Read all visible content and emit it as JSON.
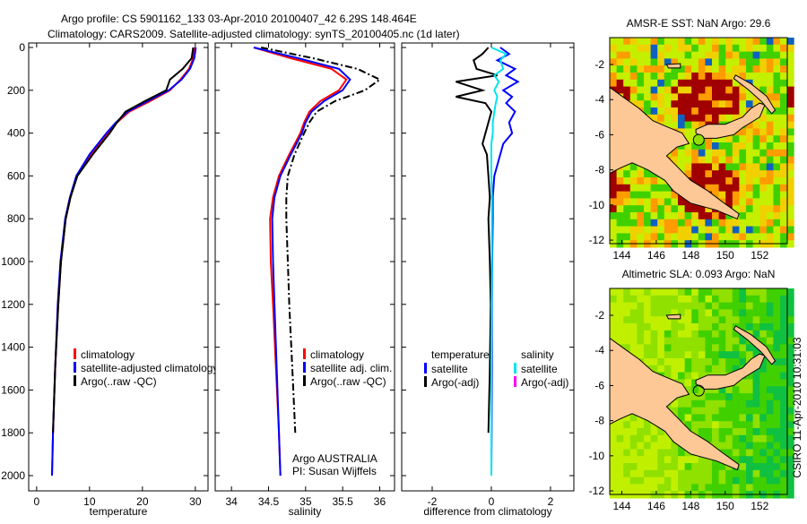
{
  "title_line1": "Argo profile: CS 5901162_133 03-Apr-2010 20100407_42 6.29S 148.464E",
  "title_line2": "Climatology: CARS2009. Satellite-adjusted climatology: synTS_20100405.nc (1d later)",
  "footer_stamp": "CSIRO 11-Apr-2010 10:31:03",
  "colors": {
    "climatology": "#ff0000",
    "satellite": "#0000ff",
    "argo": "#000000",
    "sal_satellite": "#00e5ee",
    "sal_argo": "#ff00ff",
    "land": "#fdc896"
  },
  "chart_data": [
    {
      "type": "line",
      "xlabel": "temperature",
      "ylabel": "",
      "xlim": [
        -1.5,
        32.4
      ],
      "ylim": [
        0,
        2070
      ],
      "y_reversed": true,
      "xticks": [
        "0",
        "10",
        "20",
        "30"
      ],
      "xtick_values": [
        0,
        10,
        20,
        30
      ],
      "yticks": [
        "0",
        "200",
        "400",
        "600",
        "800",
        "1000",
        "1200",
        "1400",
        "1600",
        "1800",
        "2000"
      ],
      "legend": [
        "climatology",
        "satellite-adjusted climatology",
        "Argo(..raw -QC)"
      ],
      "pressure": [
        0,
        50,
        100,
        150,
        200,
        250,
        300,
        350,
        400,
        500,
        600,
        700,
        800,
        1000,
        1200,
        1500,
        1800,
        2000
      ],
      "series": [
        {
          "name": "climatology",
          "values": [
            29.8,
            29.6,
            28.8,
            27.2,
            25.2,
            21.5,
            17.5,
            15.2,
            13.4,
            10.2,
            7.6,
            6.4,
            5.5,
            4.6,
            4.1,
            3.5,
            3.1,
            2.9
          ]
        },
        {
          "name": "satellite-adjusted climatology",
          "values": [
            30.1,
            29.8,
            29.0,
            27.4,
            25.0,
            21.0,
            17.2,
            15.0,
            13.2,
            10.0,
            7.5,
            6.3,
            5.4,
            4.5,
            4.0,
            3.5,
            3.1,
            2.9
          ]
        },
        {
          "name": "Argo(..raw -QC)",
          "values": [
            29.6,
            29.3,
            27.6,
            25.2,
            24.5,
            20.5,
            16.8,
            15.2,
            13.8,
            10.6,
            7.7,
            6.4,
            5.5,
            4.6,
            4.1,
            3.5,
            3.1,
            null
          ]
        }
      ]
    },
    {
      "type": "line",
      "xlabel": "salinity",
      "xlim": [
        33.78,
        36.2
      ],
      "ylim": [
        0,
        2070
      ],
      "y_reversed": true,
      "xticks": [
        "34",
        "34.5",
        "35",
        "35.5",
        "36"
      ],
      "xtick_values": [
        34,
        34.5,
        35,
        35.5,
        36
      ],
      "legend": [
        "climatology",
        "satellite adj. clim.",
        "Argo(..raw -QC)"
      ],
      "annotation": [
        "Argo AUSTRALIA",
        "PI: Susan Wijffels"
      ],
      "pressure": [
        0,
        50,
        100,
        150,
        200,
        250,
        300,
        350,
        400,
        500,
        600,
        700,
        800,
        1000,
        1200,
        1500,
        1800,
        2000
      ],
      "series": [
        {
          "name": "climatology",
          "values": [
            34.3,
            34.8,
            35.35,
            35.55,
            35.45,
            35.2,
            35.05,
            34.98,
            34.93,
            34.78,
            34.64,
            34.56,
            34.52,
            34.53,
            34.56,
            34.6,
            34.64,
            34.66
          ]
        },
        {
          "name": "satellite adj. clim.",
          "values": [
            34.3,
            34.9,
            35.45,
            35.6,
            35.5,
            35.25,
            35.08,
            35.0,
            34.95,
            34.8,
            34.66,
            34.58,
            34.55,
            34.56,
            34.58,
            34.61,
            34.64,
            34.66
          ]
        },
        {
          "name": "Argo(..raw -QC)",
          "values": [
            34.4,
            35.1,
            35.7,
            36.0,
            35.8,
            35.4,
            35.15,
            35.05,
            34.98,
            34.85,
            34.76,
            34.74,
            34.74,
            34.76,
            34.78,
            34.82,
            34.86,
            null
          ]
        }
      ]
    },
    {
      "type": "line",
      "xlabel": "difference from climatology",
      "xlim": [
        -3.03,
        2.79
      ],
      "ylim": [
        0,
        2070
      ],
      "y_reversed": true,
      "xticks": [
        "-2",
        "0",
        "2"
      ],
      "xtick_values": [
        -2,
        0,
        2
      ],
      "legend_temperature": {
        "heading": "temperature",
        "items": [
          "satellite",
          "Argo(-adj)"
        ]
      },
      "legend_salinity": {
        "heading": "salinity",
        "items": [
          "satellite",
          "Argo(-adj)"
        ]
      },
      "pressure": [
        0,
        30,
        60,
        100,
        130,
        160,
        200,
        230,
        260,
        300,
        350,
        400,
        450,
        500,
        600,
        700,
        800,
        1000,
        1200,
        1500,
        1800,
        2000
      ],
      "series": [
        {
          "name": "temperature satellite",
          "values": [
            0.3,
            0.6,
            0.2,
            0.8,
            0.5,
            0.9,
            0.4,
            0.7,
            0.5,
            0.8,
            0.6,
            0.7,
            0.4,
            0.3,
            0.1,
            0.05,
            0.05,
            0.03,
            0.02,
            0.02,
            0.01,
            0.0
          ]
        },
        {
          "name": "temperature Argo(-adj)",
          "values": [
            -0.1,
            -0.3,
            -0.6,
            -0.5,
            0.2,
            -1.2,
            -0.3,
            -1.2,
            -0.2,
            0.0,
            -0.1,
            -0.2,
            -0.3,
            -0.15,
            -0.1,
            -0.05,
            -0.1,
            -0.05,
            -0.02,
            -0.05,
            -0.1,
            null
          ]
        },
        {
          "name": "salinity satellite",
          "values": [
            0.0,
            0.5,
            0.3,
            0.4,
            0.1,
            0.25,
            0.1,
            0.2,
            0.15,
            0.1,
            0.05,
            0.05,
            0.0,
            0.0,
            0.0,
            0.02,
            0.02,
            0.02,
            0.01,
            0.0,
            0.0,
            0.0
          ]
        }
      ]
    },
    {
      "type": "heatmap",
      "title": "AMSR-E SST: NaN Argo: 29.6",
      "xlim": [
        143.3,
        153.6
      ],
      "ylim": [
        -12.2,
        -0.47
      ],
      "xticks": [
        "144",
        "146",
        "148",
        "150",
        "152"
      ],
      "xtick_values": [
        144,
        146,
        148,
        150,
        152
      ],
      "yticks": [
        "-2",
        "-4",
        "-6",
        "-8",
        "-10",
        "-12"
      ],
      "ytick_values": [
        -2,
        -4,
        -6,
        -8,
        -10,
        -12
      ],
      "argo_position": [
        148.464,
        -6.29
      ]
    },
    {
      "type": "heatmap",
      "title": "Altimetric SLA: 0.093 Argo: NaN",
      "xlim": [
        143.3,
        153.6
      ],
      "ylim": [
        -12.2,
        -0.47
      ],
      "xticks": [
        "144",
        "146",
        "148",
        "150",
        "152"
      ],
      "xtick_values": [
        144,
        146,
        148,
        150,
        152
      ],
      "yticks": [
        "-2",
        "-4",
        "-6",
        "-8",
        "-10",
        "-12"
      ],
      "ytick_values": [
        -2,
        -4,
        -6,
        -8,
        -10,
        -12
      ],
      "argo_position": [
        148.464,
        -6.29
      ]
    }
  ]
}
